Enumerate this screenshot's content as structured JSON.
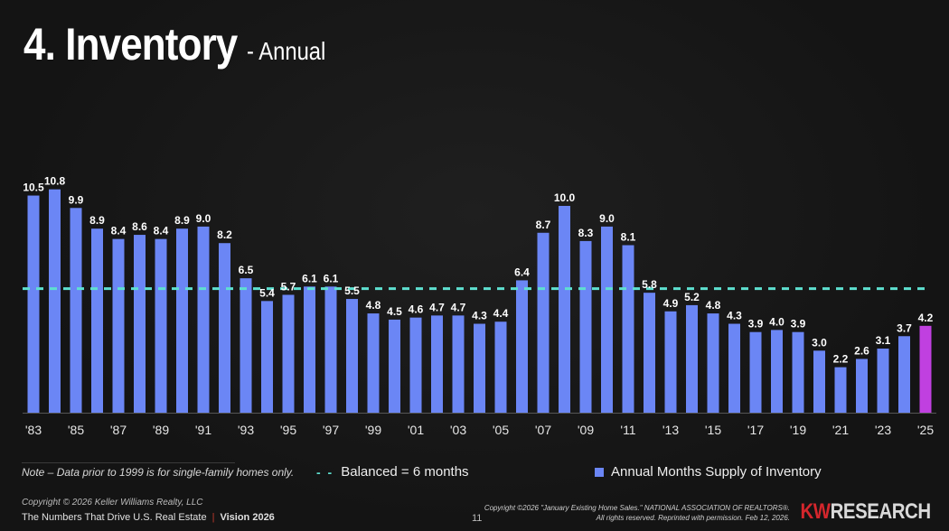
{
  "header": {
    "title": "4. Inventory",
    "subtitle": "- Annual"
  },
  "chart_data": {
    "type": "bar",
    "title": "4. Inventory - Annual",
    "xlabel": "",
    "ylabel": "",
    "ylim": [
      0,
      11
    ],
    "grid": false,
    "categories": [
      "'83",
      "'84",
      "'85",
      "'86",
      "'87",
      "'88",
      "'89",
      "'90",
      "'91",
      "'92",
      "'93",
      "'94",
      "'95",
      "'96",
      "'97",
      "'98",
      "'99",
      "'00",
      "'01",
      "'02",
      "'03",
      "'04",
      "'05",
      "'06",
      "'07",
      "'08",
      "'09",
      "'10",
      "'11",
      "'12",
      "'13",
      "'14",
      "'15",
      "'16",
      "'17",
      "'18",
      "'19",
      "'20",
      "'21",
      "'22",
      "'23",
      "'24",
      "'25"
    ],
    "tick_labels": [
      "'83",
      "'85",
      "'87",
      "'89",
      "'91",
      "'93",
      "'95",
      "'97",
      "'99",
      "'01",
      "'03",
      "'05",
      "'07",
      "'09",
      "'11",
      "'13",
      "'15",
      "'17",
      "'19",
      "'21",
      "'23",
      "'25"
    ],
    "values": [
      10.5,
      10.8,
      9.9,
      8.9,
      8.4,
      8.6,
      8.4,
      8.9,
      9.0,
      8.2,
      6.5,
      5.4,
      5.7,
      6.1,
      6.1,
      5.5,
      4.8,
      4.5,
      4.6,
      4.7,
      4.7,
      4.3,
      4.4,
      6.4,
      8.7,
      10.0,
      8.3,
      9.0,
      8.1,
      5.8,
      4.9,
      5.2,
      4.8,
      4.3,
      3.9,
      4.0,
      3.9,
      3.0,
      2.2,
      2.6,
      3.1,
      3.7,
      4.2
    ],
    "data_labels": [
      "10.5",
      "10.8",
      "9.9",
      "8.9",
      "8.4",
      "8.6",
      "8.4",
      "8.9",
      "9.0",
      "8.2",
      "6.5",
      "5.4",
      "5.7",
      "6.1",
      "6.1",
      "5.5",
      "4.8",
      "4.5",
      "4.6",
      "4.7",
      "4.7",
      "4.3",
      "4.4",
      "6.4",
      "8.7",
      "10.0",
      "8.3",
      "9.0",
      "8.1",
      "5.8",
      "4.9",
      "5.2",
      "4.8",
      "4.3",
      "3.9",
      "4.0",
      "3.9",
      "3.0",
      "2.2",
      "2.6",
      "3.1",
      "3.7",
      "4.2"
    ],
    "highlight_index": 42,
    "reference_line": {
      "value": 6,
      "label": "Balanced = 6 months"
    },
    "series_name": "Annual Months Supply of Inventory",
    "legend_position": "bottom",
    "colors": {
      "bar": "#6b86f5",
      "highlight": "#c040e0",
      "reference": "#5ee0d0",
      "label": "#ffffff",
      "axis": "#555555"
    }
  },
  "legend": {
    "balanced_label": "Balanced = 6 months",
    "series_label": "Annual Months Supply of Inventory",
    "balanced_symbol": "- -"
  },
  "note": "Note – Data prior to 1999 is for single-family homes only.",
  "footer": {
    "copyright": "Copyright © 2026 Keller Williams Realty, LLC",
    "tagline": "The Numbers That Drive U.S. Real Estate",
    "separator": "|",
    "vision": "Vision 2026",
    "page_number": "11",
    "source_line1": "Copyright ©2026 \"January Existing Home Sales.\" NATIONAL ASSOCIATION OF REALTORS®.",
    "source_line2": "All rights reserved. Reprinted with permission. Feb 12, 2026.",
    "brand_kw": "KW",
    "brand_research": "RESEARCH"
  }
}
